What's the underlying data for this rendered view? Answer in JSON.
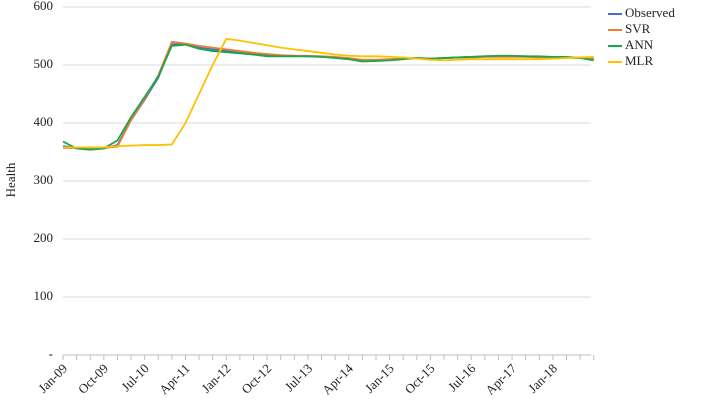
{
  "chart_data": {
    "type": "line",
    "y_label": "Health",
    "categories": [
      "Jan-09",
      null,
      null,
      "Oct-09",
      null,
      null,
      "Jul-10",
      null,
      null,
      "Apr-11",
      null,
      null,
      "Jan-12",
      null,
      null,
      "Oct-12",
      null,
      null,
      "Jul-13",
      null,
      null,
      "Apr-14",
      null,
      null,
      "Jan-15",
      null,
      null,
      "Oct-15",
      null,
      null,
      "Jul-16",
      null,
      null,
      "Apr-17",
      null,
      null,
      "Jan-18",
      null,
      null,
      null
    ],
    "ylim": [
      0,
      600
    ],
    "yticks": [
      {
        "value": 0,
        "label": "-"
      },
      100,
      200,
      300,
      400,
      500,
      600
    ],
    "grid": true,
    "legend": "right",
    "series": [
      {
        "name": "Observed",
        "color": "#4472c4",
        "values": [
          360,
          357,
          355,
          356,
          362,
          405,
          440,
          478,
          536,
          536,
          530,
          527,
          524,
          521,
          519,
          517,
          516,
          516,
          515,
          514,
          513,
          511,
          508,
          508,
          509,
          511,
          512,
          511,
          512,
          513,
          514,
          515,
          515,
          515,
          515,
          514,
          514,
          513,
          512,
          510
        ]
      },
      {
        "name": "SVR",
        "color": "#ed7d31",
        "values": [
          357,
          357,
          356,
          357,
          359,
          405,
          442,
          482,
          540,
          537,
          533,
          530,
          527,
          524,
          521,
          519,
          517,
          516,
          516,
          515,
          514,
          512,
          509,
          509,
          510,
          511,
          512,
          511,
          512,
          513,
          513,
          514,
          514,
          514,
          514,
          513,
          513,
          513,
          512,
          511
        ]
      },
      {
        "name": "ANN",
        "color": "#1aa64a",
        "values": [
          368,
          356,
          354,
          356,
          370,
          410,
          445,
          480,
          533,
          535,
          528,
          524,
          522,
          520,
          518,
          515,
          515,
          515,
          515,
          514,
          512,
          510,
          506,
          507,
          508,
          510,
          512,
          511,
          512,
          513,
          514,
          515,
          516,
          516,
          515,
          515,
          514,
          514,
          512,
          508
        ]
      },
      {
        "name": "MLR",
        "color": "#ffc000",
        "values": [
          358,
          358,
          358,
          358,
          360,
          361,
          362,
          362,
          363,
          400,
          450,
          500,
          545,
          542,
          538,
          534,
          530,
          527,
          524,
          521,
          518,
          516,
          515,
          515,
          514,
          513,
          511,
          509,
          508,
          509,
          510,
          510,
          510,
          510,
          510,
          510,
          511,
          512,
          513,
          514
        ]
      }
    ]
  }
}
